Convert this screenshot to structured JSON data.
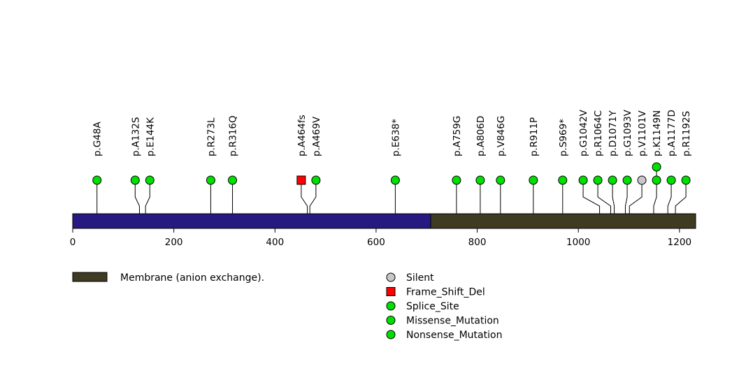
{
  "chart_data": {
    "type": "lollipop",
    "protein_length": 1232,
    "axis": {
      "ticks": [
        0,
        200,
        400,
        600,
        800,
        1000,
        1200
      ]
    },
    "colors": {
      "protein": "#261a80",
      "domain": "#3f3a22",
      "Silent": "#c8c8c8",
      "Frame_Shift_Del": "#ff0000",
      "Splice_Site": "#00e000",
      "Missense_Mutation": "#00e000",
      "Nonsense_Mutation": "#00e000"
    },
    "domains": [
      {
        "name": "Membrane (anion exchange).",
        "start": 708,
        "end": 1232
      }
    ],
    "mutations": [
      {
        "label": "p.G48A",
        "position": 48,
        "type": "Missense_Mutation",
        "count": 1
      },
      {
        "label": "p.A132S",
        "position": 132,
        "type": "Missense_Mutation",
        "count": 1
      },
      {
        "label": "p.E144K",
        "position": 144,
        "type": "Missense_Mutation",
        "count": 1
      },
      {
        "label": "p.R273L",
        "position": 273,
        "type": "Missense_Mutation",
        "count": 1
      },
      {
        "label": "p.R316Q",
        "position": 316,
        "type": "Missense_Mutation",
        "count": 1
      },
      {
        "label": "p.A464fs",
        "position": 464,
        "type": "Frame_Shift_Del",
        "count": 1
      },
      {
        "label": "p.A469V",
        "position": 469,
        "type": "Missense_Mutation",
        "count": 1
      },
      {
        "label": "p.E638*",
        "position": 638,
        "type": "Nonsense_Mutation",
        "count": 1
      },
      {
        "label": "p.A759G",
        "position": 759,
        "type": "Missense_Mutation",
        "count": 1
      },
      {
        "label": "p.A806D",
        "position": 806,
        "type": "Missense_Mutation",
        "count": 1
      },
      {
        "label": "p.V846G",
        "position": 846,
        "type": "Missense_Mutation",
        "count": 1
      },
      {
        "label": "p.R911P",
        "position": 911,
        "type": "Missense_Mutation",
        "count": 1
      },
      {
        "label": "p.S969*",
        "position": 969,
        "type": "Nonsense_Mutation",
        "count": 1
      },
      {
        "label": "p.G1042V",
        "position": 1042,
        "type": "Missense_Mutation",
        "count": 1
      },
      {
        "label": "p.R1064C",
        "position": 1064,
        "type": "Missense_Mutation",
        "count": 1
      },
      {
        "label": "p.D1071Y",
        "position": 1071,
        "type": "Missense_Mutation",
        "count": 1
      },
      {
        "label": "p.G1093V",
        "position": 1093,
        "type": "Missense_Mutation",
        "count": 1
      },
      {
        "label": "p.V1101V",
        "position": 1101,
        "type": "Silent",
        "count": 1
      },
      {
        "label": "p.K1149N",
        "position": 1149,
        "type": "Missense_Mutation",
        "count": 2
      },
      {
        "label": "p.A1177D",
        "position": 1177,
        "type": "Missense_Mutation",
        "count": 1
      },
      {
        "label": "p.R1192S",
        "position": 1192,
        "type": "Missense_Mutation",
        "count": 1
      }
    ],
    "legend": {
      "domains": [
        "Membrane (anion exchange)."
      ],
      "mutation_types": [
        "Silent",
        "Frame_Shift_Del",
        "Splice_Site",
        "Missense_Mutation",
        "Nonsense_Mutation"
      ]
    }
  }
}
